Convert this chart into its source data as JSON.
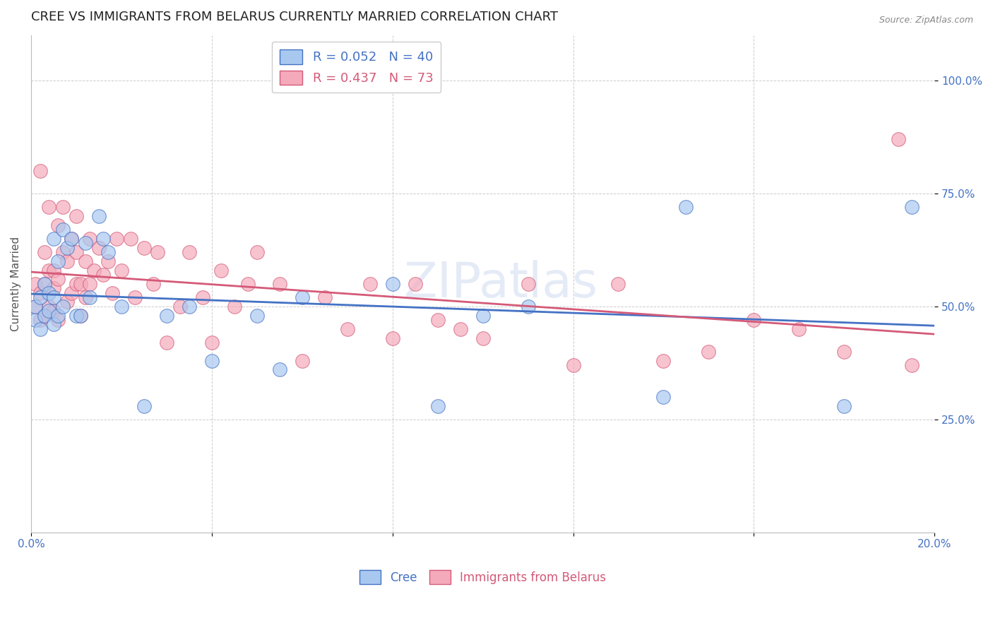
{
  "title": "CREE VS IMMIGRANTS FROM BELARUS CURRENTLY MARRIED CORRELATION CHART",
  "source": "Source: ZipAtlas.com",
  "ylabel_label": "Currently Married",
  "watermark": "ZIPatlas",
  "xlim": [
    0.0,
    0.2
  ],
  "ylim": [
    0.0,
    1.05
  ],
  "xticks": [
    0.0,
    0.04,
    0.08,
    0.12,
    0.16,
    0.2
  ],
  "xtick_labels": [
    "0.0%",
    "",
    "",
    "",
    "",
    "20.0%"
  ],
  "yticks": [
    0.25,
    0.5,
    0.75,
    1.0
  ],
  "ytick_labels": [
    "25.0%",
    "50.0%",
    "75.0%",
    "100.0%"
  ],
  "cree_color": "#A8C8F0",
  "belarus_color": "#F4AABB",
  "cree_R": 0.052,
  "cree_N": 40,
  "belarus_R": 0.437,
  "belarus_N": 73,
  "cree_line_color": "#4472C4",
  "belarus_line_color": "#D45A78",
  "grid_color": "#CCCCCC",
  "background_color": "#FFFFFF",
  "title_fontsize": 13,
  "axis_label_fontsize": 11,
  "tick_fontsize": 11,
  "cree_x": [
    0.001,
    0.001,
    0.002,
    0.002,
    0.003,
    0.003,
    0.004,
    0.004,
    0.005,
    0.005,
    0.005,
    0.006,
    0.006,
    0.007,
    0.007,
    0.008,
    0.009,
    0.01,
    0.011,
    0.012,
    0.013,
    0.015,
    0.016,
    0.017,
    0.02,
    0.025,
    0.03,
    0.035,
    0.04,
    0.05,
    0.055,
    0.06,
    0.08,
    0.09,
    0.1,
    0.11,
    0.14,
    0.145,
    0.18,
    0.195
  ],
  "cree_y": [
    0.47,
    0.5,
    0.45,
    0.52,
    0.48,
    0.55,
    0.49,
    0.53,
    0.46,
    0.52,
    0.65,
    0.48,
    0.6,
    0.5,
    0.67,
    0.63,
    0.65,
    0.48,
    0.48,
    0.64,
    0.52,
    0.7,
    0.65,
    0.62,
    0.5,
    0.28,
    0.48,
    0.5,
    0.38,
    0.48,
    0.36,
    0.52,
    0.55,
    0.28,
    0.48,
    0.5,
    0.3,
    0.72,
    0.28,
    0.72
  ],
  "belarus_x": [
    0.001,
    0.001,
    0.002,
    0.002,
    0.002,
    0.003,
    0.003,
    0.003,
    0.004,
    0.004,
    0.004,
    0.005,
    0.005,
    0.005,
    0.006,
    0.006,
    0.006,
    0.007,
    0.007,
    0.008,
    0.008,
    0.009,
    0.009,
    0.01,
    0.01,
    0.01,
    0.011,
    0.011,
    0.012,
    0.012,
    0.013,
    0.013,
    0.014,
    0.015,
    0.016,
    0.017,
    0.018,
    0.019,
    0.02,
    0.022,
    0.023,
    0.025,
    0.027,
    0.028,
    0.03,
    0.033,
    0.035,
    0.038,
    0.04,
    0.042,
    0.045,
    0.048,
    0.05,
    0.055,
    0.06,
    0.065,
    0.07,
    0.075,
    0.08,
    0.085,
    0.09,
    0.095,
    0.1,
    0.11,
    0.12,
    0.13,
    0.14,
    0.15,
    0.16,
    0.17,
    0.18,
    0.192,
    0.195
  ],
  "belarus_y": [
    0.5,
    0.55,
    0.47,
    0.53,
    0.8,
    0.48,
    0.55,
    0.62,
    0.5,
    0.58,
    0.72,
    0.49,
    0.54,
    0.58,
    0.47,
    0.56,
    0.68,
    0.62,
    0.72,
    0.51,
    0.6,
    0.53,
    0.65,
    0.55,
    0.62,
    0.7,
    0.48,
    0.55,
    0.52,
    0.6,
    0.55,
    0.65,
    0.58,
    0.63,
    0.57,
    0.6,
    0.53,
    0.65,
    0.58,
    0.65,
    0.52,
    0.63,
    0.55,
    0.62,
    0.42,
    0.5,
    0.62,
    0.52,
    0.42,
    0.58,
    0.5,
    0.55,
    0.62,
    0.55,
    0.38,
    0.52,
    0.45,
    0.55,
    0.43,
    0.55,
    0.47,
    0.45,
    0.43,
    0.55,
    0.37,
    0.55,
    0.38,
    0.4,
    0.47,
    0.45,
    0.4,
    0.87,
    0.37
  ]
}
